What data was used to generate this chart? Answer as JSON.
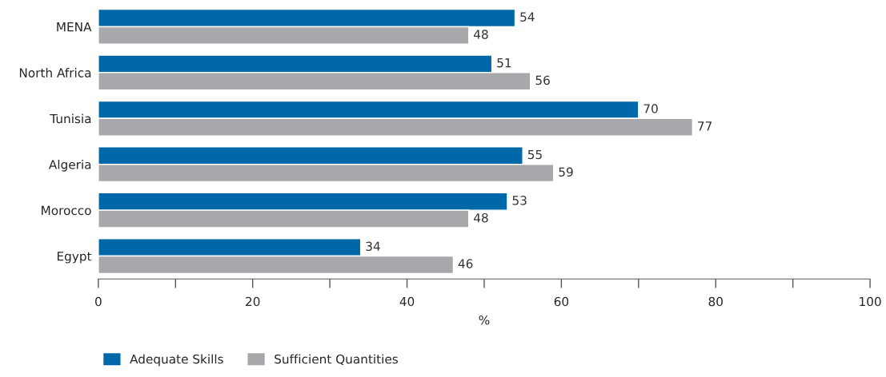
{
  "chart_data": {
    "type": "bar",
    "orientation": "horizontal",
    "xlabel": "%",
    "categories": [
      "MENA",
      "North Africa",
      "Tunisia",
      "Algeria",
      "Morocco",
      "Egypt"
    ],
    "series": [
      {
        "name": "Adequate Skills",
        "color": "#0068a9",
        "values": [
          54,
          51,
          70,
          55,
          53,
          34
        ]
      },
      {
        "name": "Sufficient Quantities",
        "color": "#a7a8ab",
        "values": [
          48,
          56,
          77,
          59,
          48,
          46
        ]
      }
    ],
    "xlim": [
      0,
      100
    ],
    "xticks": [
      0,
      {
        "value": 10,
        "label": null
      },
      20,
      {
        "value": 30,
        "label": null
      },
      40,
      {
        "value": 50,
        "label": null
      },
      60,
      {
        "value": 70,
        "label": null
      },
      80,
      {
        "value": 90,
        "label": null
      },
      100
    ],
    "data_labels": true,
    "grid": false,
    "legend": "bottom left"
  }
}
